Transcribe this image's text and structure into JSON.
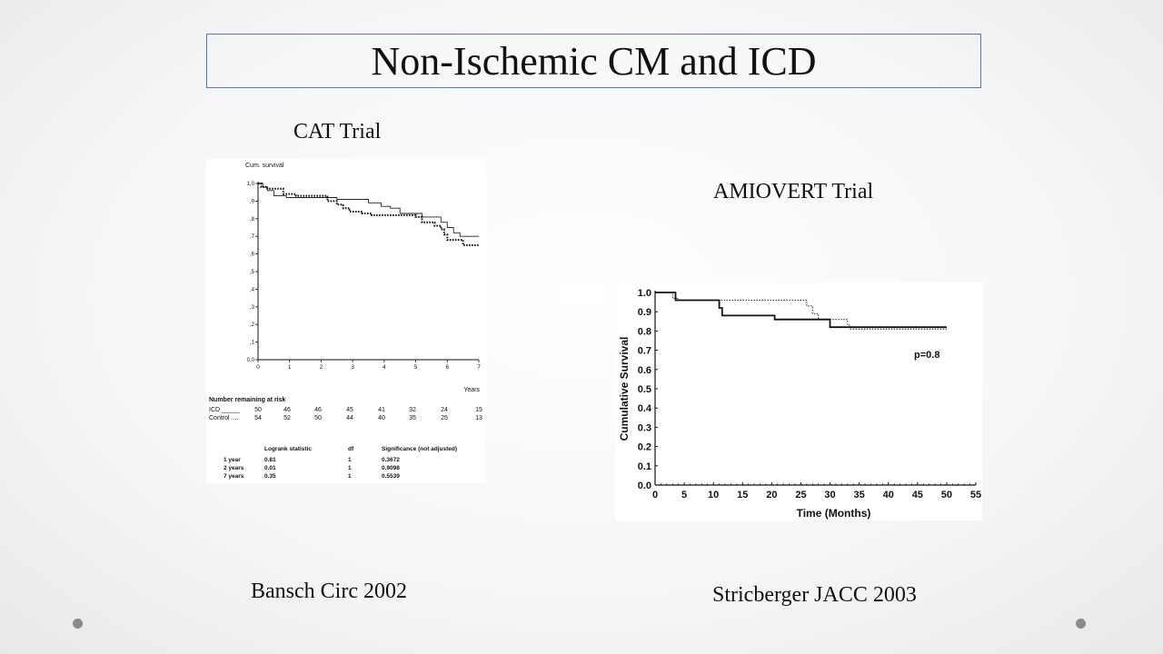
{
  "slide": {
    "title": "Non-Ischemic CM and ICD",
    "left_label": "CAT Trial",
    "right_label": "AMIOVERT Trial",
    "left_citation": "Bansch Circ 2002",
    "right_citation": "Stricberger JACC 2003"
  },
  "chart_data": [
    {
      "type": "line",
      "title": "CAT Trial",
      "ylabel": "Cum. survival",
      "xlabel": "Years",
      "xlim": [
        0,
        7
      ],
      "ylim": [
        0,
        1.0
      ],
      "x_ticks": [
        "0",
        "1",
        "2",
        "3",
        "4",
        "5",
        "6",
        "7"
      ],
      "y_ticks": [
        "0,0",
        ",1",
        ",2",
        ",3",
        ",4",
        ",5",
        ",6",
        ",7",
        ",8",
        ",9",
        "1,0"
      ],
      "series": [
        {
          "name": "ICD",
          "style": "solid",
          "points": [
            [
              0,
              1.0
            ],
            [
              0.15,
              1.0
            ],
            [
              0.15,
              0.98
            ],
            [
              0.3,
              0.98
            ],
            [
              0.3,
              0.96
            ],
            [
              0.5,
              0.96
            ],
            [
              0.5,
              0.93
            ],
            [
              0.9,
              0.93
            ],
            [
              0.9,
              0.92
            ],
            [
              2.5,
              0.92
            ],
            [
              2.5,
              0.91
            ],
            [
              3.5,
              0.91
            ],
            [
              3.5,
              0.89
            ],
            [
              3.9,
              0.89
            ],
            [
              3.9,
              0.87
            ],
            [
              4.2,
              0.87
            ],
            [
              4.2,
              0.86
            ],
            [
              4.5,
              0.86
            ],
            [
              4.5,
              0.83
            ],
            [
              5.2,
              0.83
            ],
            [
              5.2,
              0.81
            ],
            [
              5.8,
              0.81
            ],
            [
              5.8,
              0.78
            ],
            [
              6.0,
              0.78
            ],
            [
              6.0,
              0.75
            ],
            [
              6.2,
              0.75
            ],
            [
              6.2,
              0.72
            ],
            [
              6.4,
              0.72
            ],
            [
              6.4,
              0.7
            ],
            [
              7.0,
              0.7
            ]
          ]
        },
        {
          "name": "Control",
          "style": "dotted",
          "points": [
            [
              0,
              1.0
            ],
            [
              0.1,
              1.0
            ],
            [
              0.1,
              0.98
            ],
            [
              0.3,
              0.98
            ],
            [
              0.3,
              0.97
            ],
            [
              0.8,
              0.97
            ],
            [
              0.8,
              0.94
            ],
            [
              1.2,
              0.94
            ],
            [
              1.2,
              0.93
            ],
            [
              2.2,
              0.93
            ],
            [
              2.2,
              0.9
            ],
            [
              2.5,
              0.9
            ],
            [
              2.5,
              0.88
            ],
            [
              2.7,
              0.88
            ],
            [
              2.7,
              0.86
            ],
            [
              2.9,
              0.86
            ],
            [
              2.9,
              0.84
            ],
            [
              3.3,
              0.84
            ],
            [
              3.3,
              0.83
            ],
            [
              3.6,
              0.83
            ],
            [
              3.6,
              0.82
            ],
            [
              5.0,
              0.82
            ],
            [
              5.0,
              0.81
            ],
            [
              5.2,
              0.81
            ],
            [
              5.2,
              0.78
            ],
            [
              5.6,
              0.78
            ],
            [
              5.6,
              0.76
            ],
            [
              5.8,
              0.76
            ],
            [
              5.8,
              0.74
            ],
            [
              5.9,
              0.74
            ],
            [
              5.9,
              0.71
            ],
            [
              6.0,
              0.71
            ],
            [
              6.0,
              0.68
            ],
            [
              6.5,
              0.68
            ],
            [
              6.5,
              0.65
            ],
            [
              7.0,
              0.65
            ]
          ]
        }
      ],
      "risk_table": {
        "heading": "Number remaining at risk",
        "rows": [
          {
            "label": "ICD _____",
            "values": [
              "50",
              "46",
              "46",
              "45",
              "41",
              "32",
              "24",
              "15"
            ]
          },
          {
            "label": "Control ....",
            "values": [
              "54",
              "52",
              "50",
              "44",
              "40",
              "35",
              "25",
              "13"
            ]
          }
        ]
      },
      "stats_table": {
        "headers": [
          "",
          "Logrank statistic",
          "df",
          "Significance (not adjusted)"
        ],
        "rows": [
          [
            "1 year",
            "0.81",
            "1",
            "0.3672"
          ],
          [
            "2 years",
            "0.01",
            "1",
            "0.9098"
          ],
          [
            "7 years",
            "0.35",
            "1",
            "0.5539"
          ]
        ]
      }
    },
    {
      "type": "line",
      "title": "AMIOVERT Trial",
      "ylabel": "Cumulative Survival",
      "xlabel": "Time (Months)",
      "xlim": [
        0,
        55
      ],
      "ylim": [
        0,
        1.0
      ],
      "x_ticks": [
        "0",
        "5",
        "10",
        "15",
        "20",
        "25",
        "30",
        "35",
        "40",
        "45",
        "50",
        "55"
      ],
      "y_ticks": [
        "0.0",
        "0.1",
        "0.2",
        "0.3",
        "0.4",
        "0.5",
        "0.6",
        "0.7",
        "0.8",
        "0.9",
        "1.0"
      ],
      "annotation": "p=0.8",
      "series": [
        {
          "style": "solid",
          "points": [
            [
              0,
              1.0
            ],
            [
              3.5,
              1.0
            ],
            [
              3.5,
              0.96
            ],
            [
              11,
              0.96
            ],
            [
              11,
              0.92
            ],
            [
              11.5,
              0.92
            ],
            [
              11.5,
              0.88
            ],
            [
              20.5,
              0.88
            ],
            [
              20.5,
              0.86
            ],
            [
              26,
              0.86
            ],
            [
              26,
              0.86
            ],
            [
              30,
              0.86
            ],
            [
              30,
              0.82
            ],
            [
              50,
              0.82
            ]
          ]
        },
        {
          "style": "dotted",
          "points": [
            [
              0,
              1.0
            ],
            [
              3,
              1.0
            ],
            [
              3,
              0.97
            ],
            [
              4,
              0.97
            ],
            [
              4,
              0.96
            ],
            [
              26,
              0.96
            ],
            [
              26,
              0.93
            ],
            [
              27,
              0.93
            ],
            [
              27,
              0.89
            ],
            [
              28,
              0.89
            ],
            [
              28,
              0.86
            ],
            [
              33,
              0.86
            ],
            [
              33,
              0.83
            ],
            [
              33.5,
              0.83
            ],
            [
              33.5,
              0.81
            ],
            [
              50,
              0.81
            ]
          ]
        }
      ]
    }
  ]
}
